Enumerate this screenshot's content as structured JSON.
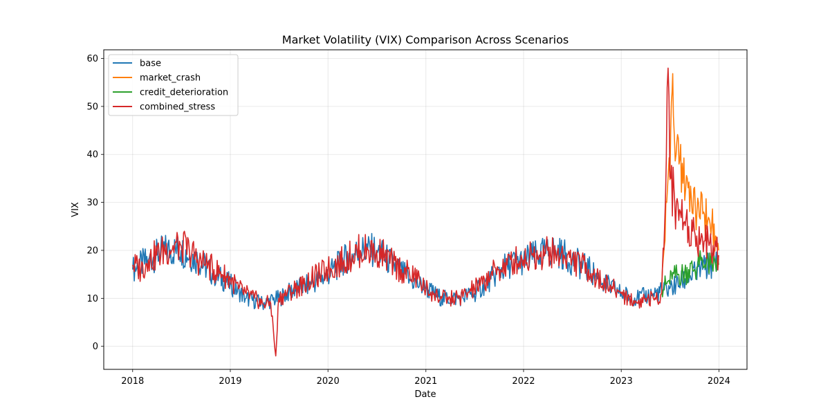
{
  "chart_data": {
    "type": "line",
    "title": "Market Volatility (VIX) Comparison Across Scenarios",
    "xlabel": "Date",
    "ylabel": "VIX",
    "x_range": [
      "2017-09-15",
      "2024-04-15"
    ],
    "ylim": [
      -4.8,
      61.8
    ],
    "x_ticks": [
      {
        "date": "2018-01-01",
        "label": "2018"
      },
      {
        "date": "2019-01-01",
        "label": "2019"
      },
      {
        "date": "2020-01-01",
        "label": "2020"
      },
      {
        "date": "2021-01-01",
        "label": "2021"
      },
      {
        "date": "2022-01-01",
        "label": "2022"
      },
      {
        "date": "2023-01-01",
        "label": "2023"
      },
      {
        "date": "2024-01-01",
        "label": "2024"
      }
    ],
    "y_ticks": [
      0,
      10,
      20,
      30,
      40,
      50,
      60
    ],
    "grid": true,
    "legend_position": "upper-left",
    "series": [
      {
        "name": "base",
        "color": "#1f77b4",
        "points": [
          [
            "2018-01-01",
            16
          ],
          [
            "2018-03-01",
            18
          ],
          [
            "2018-05-01",
            20
          ],
          [
            "2018-07-01",
            20
          ],
          [
            "2018-09-01",
            18
          ],
          [
            "2018-11-01",
            15
          ],
          [
            "2019-01-01",
            13
          ],
          [
            "2019-03-01",
            10
          ],
          [
            "2019-05-01",
            9
          ],
          [
            "2019-07-01",
            10
          ],
          [
            "2019-09-01",
            12
          ],
          [
            "2019-11-01",
            13
          ],
          [
            "2020-01-01",
            15
          ],
          [
            "2020-03-01",
            18
          ],
          [
            "2020-05-01",
            20
          ],
          [
            "2020-07-01",
            20
          ],
          [
            "2020-09-01",
            17
          ],
          [
            "2020-11-01",
            14
          ],
          [
            "2021-01-01",
            12
          ],
          [
            "2021-03-01",
            10
          ],
          [
            "2021-05-01",
            10
          ],
          [
            "2021-07-01",
            11
          ],
          [
            "2021-09-01",
            14
          ],
          [
            "2021-11-01",
            17
          ],
          [
            "2022-01-01",
            18
          ],
          [
            "2022-03-01",
            19
          ],
          [
            "2022-05-01",
            20
          ],
          [
            "2022-07-01",
            18
          ],
          [
            "2022-09-01",
            16
          ],
          [
            "2022-11-01",
            13
          ],
          [
            "2023-01-01",
            11
          ],
          [
            "2023-03-01",
            10
          ],
          [
            "2023-05-01",
            11
          ],
          [
            "2023-07-01",
            12
          ],
          [
            "2023-09-01",
            14
          ],
          [
            "2023-11-01",
            16
          ],
          [
            "2023-12-31",
            18
          ]
        ]
      },
      {
        "name": "market_crash",
        "color": "#ff7f0e",
        "points": [
          [
            "2023-06-01",
            12
          ],
          [
            "2023-06-20",
            30
          ],
          [
            "2023-07-05",
            45
          ],
          [
            "2023-07-10",
            53
          ],
          [
            "2023-07-15",
            48
          ],
          [
            "2023-07-25",
            40
          ],
          [
            "2023-08-05",
            38
          ],
          [
            "2023-08-20",
            34
          ],
          [
            "2023-09-05",
            35
          ],
          [
            "2023-09-20",
            31
          ],
          [
            "2023-10-05",
            29
          ],
          [
            "2023-10-20",
            27
          ],
          [
            "2023-11-05",
            28
          ],
          [
            "2023-11-20",
            26
          ],
          [
            "2023-12-05",
            25
          ],
          [
            "2023-12-20",
            23
          ],
          [
            "2023-12-31",
            20
          ]
        ]
      },
      {
        "name": "credit_deterioration",
        "color": "#2ca02c",
        "points": [
          [
            "2023-06-01",
            12
          ],
          [
            "2023-06-20",
            13
          ],
          [
            "2023-07-10",
            14
          ],
          [
            "2023-08-01",
            15
          ],
          [
            "2023-08-20",
            15
          ],
          [
            "2023-09-10",
            16
          ],
          [
            "2023-10-01",
            16
          ],
          [
            "2023-10-20",
            17
          ],
          [
            "2023-11-10",
            17
          ],
          [
            "2023-12-01",
            17
          ],
          [
            "2023-12-31",
            17
          ]
        ]
      },
      {
        "name": "combined_stress",
        "color": "#d62728",
        "points": [
          [
            "2018-01-01",
            17
          ],
          [
            "2018-02-01",
            16
          ],
          [
            "2018-03-01",
            18
          ],
          [
            "2018-04-01",
            19
          ],
          [
            "2018-05-01",
            20
          ],
          [
            "2018-06-01",
            21
          ],
          [
            "2018-07-01",
            21
          ],
          [
            "2018-08-01",
            20
          ],
          [
            "2018-09-01",
            18
          ],
          [
            "2018-10-01",
            17
          ],
          [
            "2018-11-01",
            16
          ],
          [
            "2018-12-01",
            15
          ],
          [
            "2019-01-01",
            14
          ],
          [
            "2019-02-01",
            12
          ],
          [
            "2019-03-01",
            11
          ],
          [
            "2019-04-01",
            10
          ],
          [
            "2019-05-01",
            9
          ],
          [
            "2019-06-01",
            9
          ],
          [
            "2019-06-20",
            -2
          ],
          [
            "2019-07-01",
            10
          ],
          [
            "2019-08-01",
            11
          ],
          [
            "2019-09-01",
            12
          ],
          [
            "2019-10-01",
            13
          ],
          [
            "2019-11-01",
            14
          ],
          [
            "2019-12-01",
            15
          ],
          [
            "2020-01-01",
            16
          ],
          [
            "2020-02-01",
            17
          ],
          [
            "2020-03-01",
            18
          ],
          [
            "2020-04-01",
            19
          ],
          [
            "2020-05-01",
            20
          ],
          [
            "2020-06-01",
            20
          ],
          [
            "2020-07-01",
            20
          ],
          [
            "2020-08-01",
            19
          ],
          [
            "2020-09-01",
            17
          ],
          [
            "2020-10-01",
            16
          ],
          [
            "2020-11-01",
            15
          ],
          [
            "2020-12-01",
            14
          ],
          [
            "2021-01-01",
            12
          ],
          [
            "2021-02-01",
            11
          ],
          [
            "2021-03-01",
            10
          ],
          [
            "2021-04-01",
            10
          ],
          [
            "2021-05-01",
            10
          ],
          [
            "2021-06-01",
            11
          ],
          [
            "2021-07-01",
            12
          ],
          [
            "2021-08-01",
            13
          ],
          [
            "2021-09-01",
            15
          ],
          [
            "2021-10-01",
            16
          ],
          [
            "2021-11-01",
            17
          ],
          [
            "2021-12-01",
            18
          ],
          [
            "2022-01-01",
            18
          ],
          [
            "2022-02-01",
            19
          ],
          [
            "2022-03-01",
            19
          ],
          [
            "2022-04-01",
            20
          ],
          [
            "2022-05-01",
            19
          ],
          [
            "2022-06-01",
            19
          ],
          [
            "2022-07-01",
            18
          ],
          [
            "2022-08-01",
            17
          ],
          [
            "2022-09-01",
            16
          ],
          [
            "2022-10-01",
            14
          ],
          [
            "2022-11-01",
            13
          ],
          [
            "2022-12-01",
            12
          ],
          [
            "2023-01-01",
            11
          ],
          [
            "2023-02-01",
            10
          ],
          [
            "2023-03-01",
            9
          ],
          [
            "2023-04-01",
            10
          ],
          [
            "2023-05-01",
            10
          ],
          [
            "2023-06-01",
            11
          ],
          [
            "2023-06-15",
            30
          ],
          [
            "2023-06-25",
            58
          ],
          [
            "2023-07-05",
            35
          ],
          [
            "2023-07-20",
            30
          ],
          [
            "2023-08-10",
            28
          ],
          [
            "2023-08-25",
            26
          ],
          [
            "2023-09-10",
            25
          ],
          [
            "2023-09-25",
            24
          ],
          [
            "2023-10-10",
            23
          ],
          [
            "2023-10-25",
            22
          ],
          [
            "2023-11-10",
            22
          ],
          [
            "2023-11-25",
            21
          ],
          [
            "2023-12-10",
            21
          ],
          [
            "2023-12-31",
            19
          ]
        ]
      }
    ]
  }
}
